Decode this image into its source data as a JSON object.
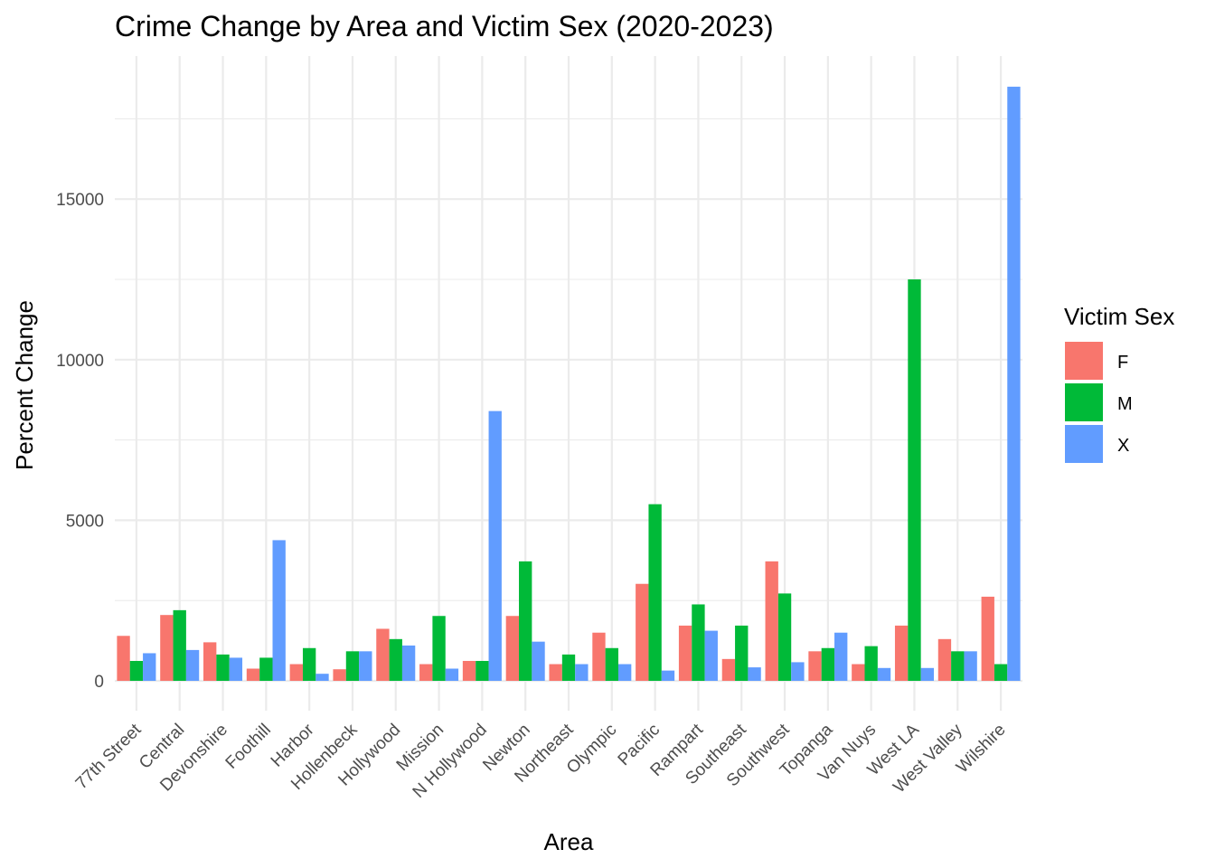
{
  "chart_data": {
    "type": "bar",
    "title": "Crime Change by Area and Victim Sex (2020-2023)",
    "xlabel": "Area",
    "ylabel": "Percent Change",
    "categories": [
      "77th Street",
      "Central",
      "Devonshire",
      "Foothill",
      "Harbor",
      "Hollenbeck",
      "Hollywood",
      "Mission",
      "N Hollywood",
      "Newton",
      "Northeast",
      "Olympic",
      "Pacific",
      "Rampart",
      "Southeast",
      "Southwest",
      "Topanga",
      "Van Nuys",
      "West LA",
      "West Valley",
      "Wilshire"
    ],
    "series": [
      {
        "name": "F",
        "color": "#F8766D",
        "values": [
          1400,
          2050,
          1200,
          380,
          520,
          360,
          1620,
          520,
          620,
          2020,
          520,
          1500,
          3020,
          1720,
          680,
          3720,
          920,
          520,
          1720,
          1300,
          2620
        ]
      },
      {
        "name": "M",
        "color": "#00BA38",
        "values": [
          620,
          2200,
          820,
          720,
          1020,
          920,
          1300,
          2020,
          620,
          3720,
          820,
          1020,
          5500,
          2380,
          1720,
          2720,
          1020,
          1080,
          12500,
          920,
          520
        ]
      },
      {
        "name": "X",
        "color": "#619CFF",
        "values": [
          860,
          960,
          720,
          4380,
          220,
          920,
          1100,
          380,
          8400,
          1220,
          520,
          520,
          320,
          1560,
          420,
          580,
          1500,
          400,
          400,
          920,
          18500
        ]
      }
    ],
    "ylim": [
      -850,
      19100
    ],
    "yticks": [
      0,
      5000,
      10000,
      15000
    ],
    "legend": {
      "title": "Victim Sex",
      "position": "right"
    },
    "grid": true
  }
}
